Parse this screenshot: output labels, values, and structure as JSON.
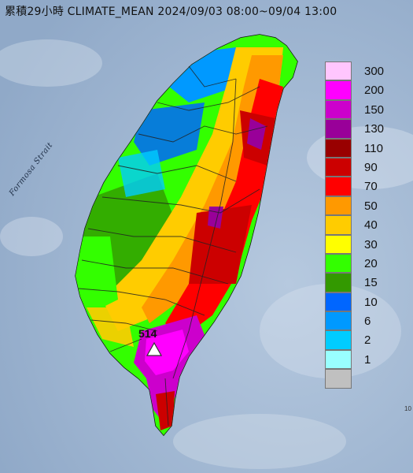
{
  "title": "累積29小時 CLIMATE_MEAN 2024/09/03 08:00~09/04 13:00",
  "sea_label": "Formosa Strait",
  "max_station": {
    "value": "514",
    "marker": "triangle-icon"
  },
  "edge_fragment": "10",
  "legend": [
    {
      "label": "300",
      "color": "#ffc6fe"
    },
    {
      "label": "200",
      "color": "#ff00ff"
    },
    {
      "label": "150",
      "color": "#cc00cc"
    },
    {
      "label": "130",
      "color": "#990099"
    },
    {
      "label": "110",
      "color": "#990000"
    },
    {
      "label": "90",
      "color": "#cc0000"
    },
    {
      "label": "70",
      "color": "#ff0000"
    },
    {
      "label": "50",
      "color": "#ff9900"
    },
    {
      "label": "40",
      "color": "#ffcc00"
    },
    {
      "label": "30",
      "color": "#ffff00"
    },
    {
      "label": "20",
      "color": "#33ff00"
    },
    {
      "label": "15",
      "color": "#339900"
    },
    {
      "label": "10",
      "color": "#0066ff"
    },
    {
      "label": "6",
      "color": "#0099ff"
    },
    {
      "label": "2",
      "color": "#00ccff"
    },
    {
      "label": "1",
      "color": "#99ffff"
    },
    {
      "label": "",
      "color": "#c0c0c0"
    }
  ]
}
